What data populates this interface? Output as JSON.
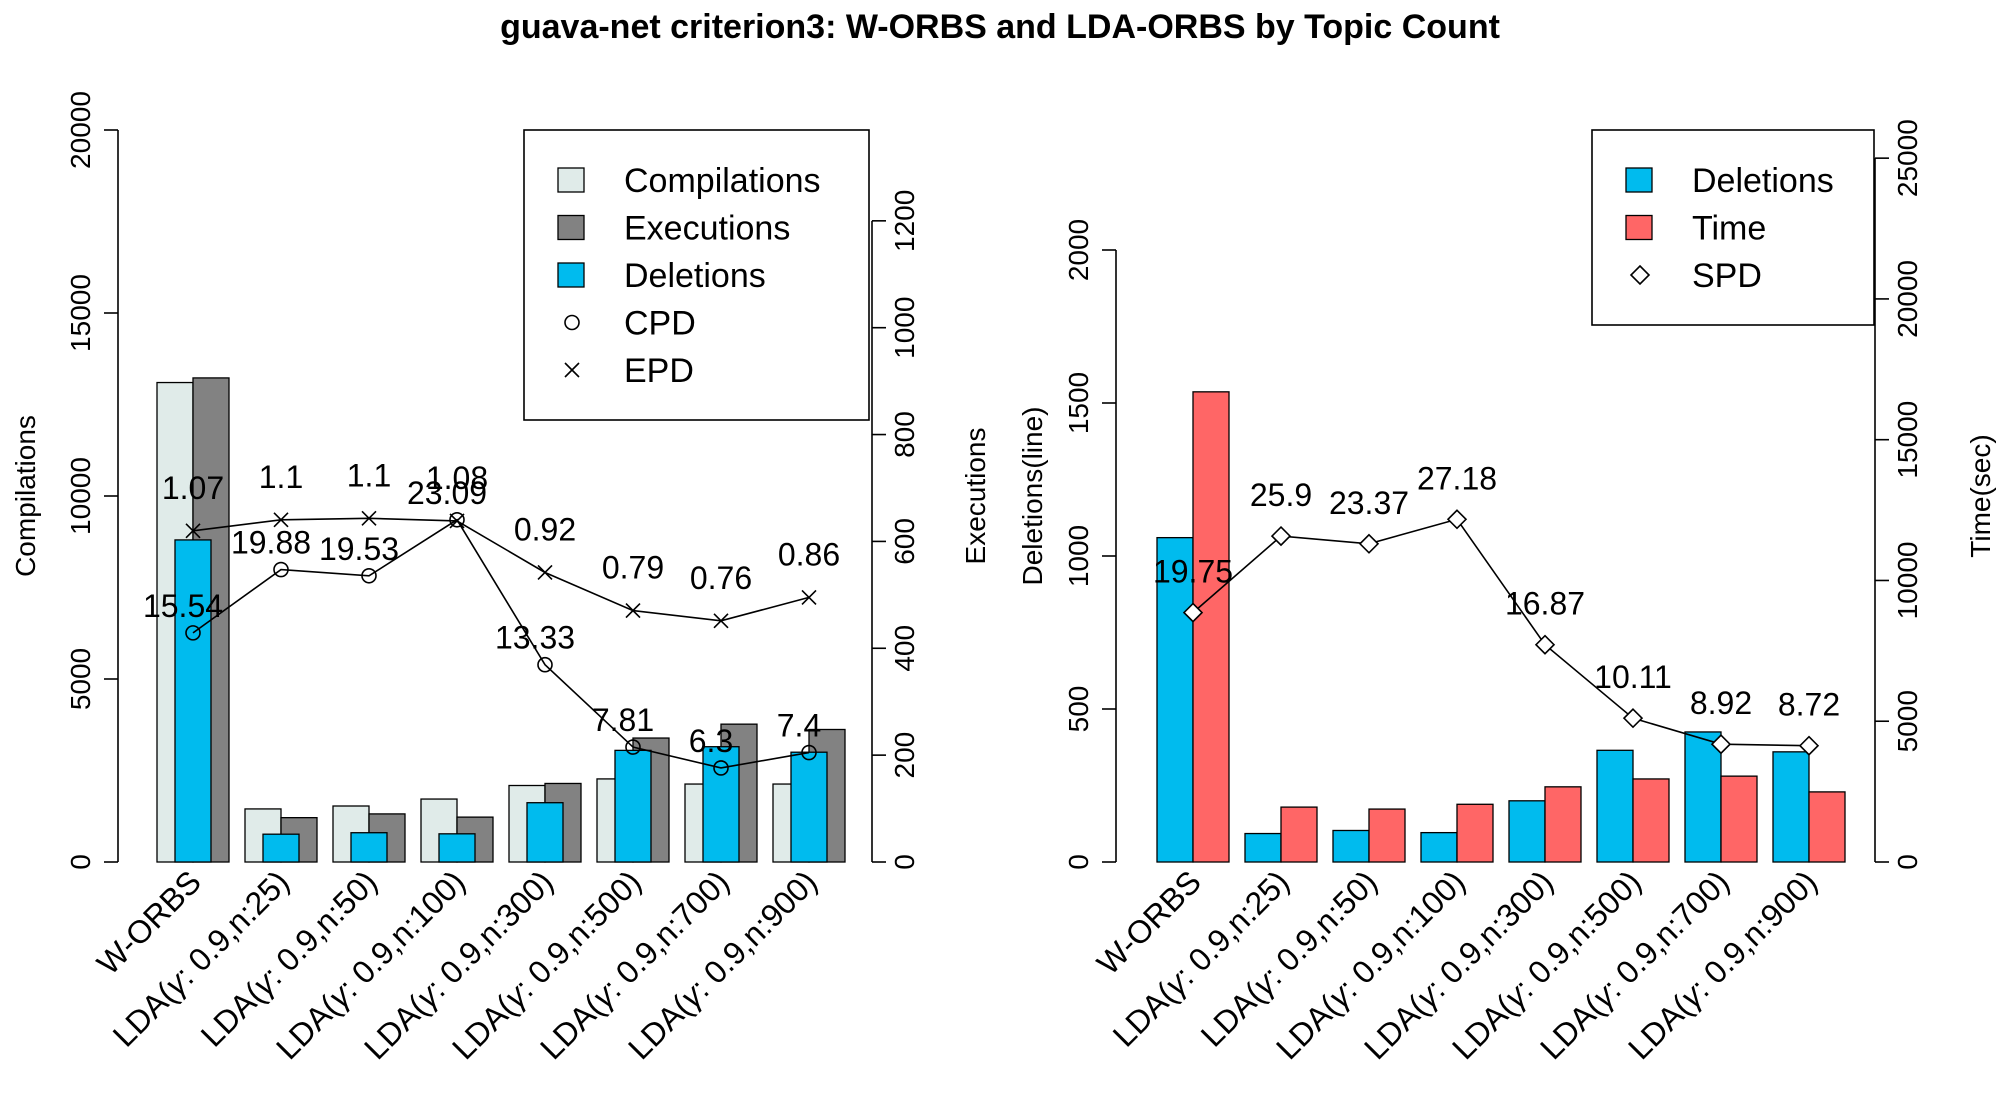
{
  "title": "guava-net criterion3: W-ORBS and LDA-ORBS by Topic Count",
  "chart_data": [
    {
      "type": "bar",
      "panel": "left",
      "categories": [
        "W-ORBS",
        "LDA(γ: 0.9,n:25)",
        "LDA(γ: 0.9,n:50)",
        "LDA(γ: 0.9,n:100)",
        "LDA(γ: 0.9,n:300)",
        "LDA(γ: 0.9,n:500)",
        "LDA(γ: 0.9,n:700)",
        "LDA(γ: 0.9,n:900)"
      ],
      "ylabel": "Compilations",
      "ylim": [
        0,
        20000
      ],
      "yticks": [
        "0",
        "5000",
        "10000",
        "15000",
        "20000"
      ],
      "y2label": "Executions",
      "y2lim": [
        0,
        1370
      ],
      "y2ticks": [
        "0",
        "200",
        "400",
        "600",
        "800",
        "1000",
        "1200"
      ],
      "series": [
        {
          "name": "Compilations",
          "axis": "left",
          "color": "#e0ebe9",
          "values": [
            13100,
            1450,
            1530,
            1720,
            2090,
            2270,
            2130,
            2130
          ]
        },
        {
          "name": "Executions",
          "axis": "right",
          "color": "#828282",
          "values": [
            906,
            83,
            90,
            84,
            147,
            232,
            258,
            248
          ]
        },
        {
          "name": "Deletions",
          "axis": "left",
          "color": "#00bbee",
          "values": [
            8800,
            760,
            800,
            770,
            1620,
            3050,
            3150,
            3000
          ]
        }
      ],
      "lines": [
        {
          "name": "CPD",
          "marker": "circle",
          "axis": "left",
          "values": [
            6260,
            7990,
            7820,
            9350,
            5390,
            3140,
            2570,
            2990
          ],
          "labels": [
            "15.54",
            "19.88",
            "19.53",
            "23.09",
            "13.33",
            "7.81",
            "6.3",
            "7.4"
          ]
        },
        {
          "name": "EPD",
          "marker": "cross",
          "axis": "left",
          "values": [
            9050,
            9350,
            9390,
            9320,
            7910,
            6870,
            6590,
            7230
          ],
          "labels": [
            "1.07",
            "1.1",
            "1.1",
            "1.08",
            "0.92",
            "0.79",
            "0.76",
            "0.86"
          ]
        }
      ],
      "legend": [
        "Compilations",
        "Executions",
        "Deletions",
        "CPD",
        "EPD"
      ],
      "legend_position": "top-right"
    },
    {
      "type": "bar",
      "panel": "right",
      "categories": [
        "W-ORBS",
        "LDA(γ: 0.9,n:25)",
        "LDA(γ: 0.9,n:50)",
        "LDA(γ: 0.9,n:100)",
        "LDA(γ: 0.9,n:300)",
        "LDA(γ: 0.9,n:500)",
        "LDA(γ: 0.9,n:700)",
        "LDA(γ: 0.9,n:900)"
      ],
      "ylabel": "Deletions(line)",
      "ylim": [
        0,
        2000
      ],
      "yticks": [
        "0",
        "500",
        "1000",
        "1500",
        "2000"
      ],
      "y2label": "Time(sec)",
      "y2lim": [
        0,
        26000
      ],
      "y2ticks": [
        "0",
        "5000",
        "10000",
        "15000",
        "20000",
        "25000"
      ],
      "series": [
        {
          "name": "Deletions",
          "axis": "left",
          "color": "#00bbee",
          "values": [
            1060,
            93,
            103,
            96,
            200,
            365,
            425,
            360
          ]
        },
        {
          "name": "Time",
          "axis": "right",
          "color": "#ff6666",
          "values": [
            16700,
            1950,
            1880,
            2050,
            2670,
            2950,
            3050,
            2490
          ]
        }
      ],
      "lines": [
        {
          "name": "SPD",
          "marker": "diamond",
          "axis": "left",
          "values": [
            815,
            1065,
            1040,
            1120,
            710,
            470,
            385,
            380
          ],
          "labels": [
            "19.75",
            "25.9",
            "23.37",
            "27.18",
            "16.87",
            "10.11",
            "8.92",
            "8.72"
          ]
        }
      ],
      "legend": [
        "Deletions",
        "Time",
        "SPD"
      ],
      "legend_position": "top-right"
    }
  ]
}
